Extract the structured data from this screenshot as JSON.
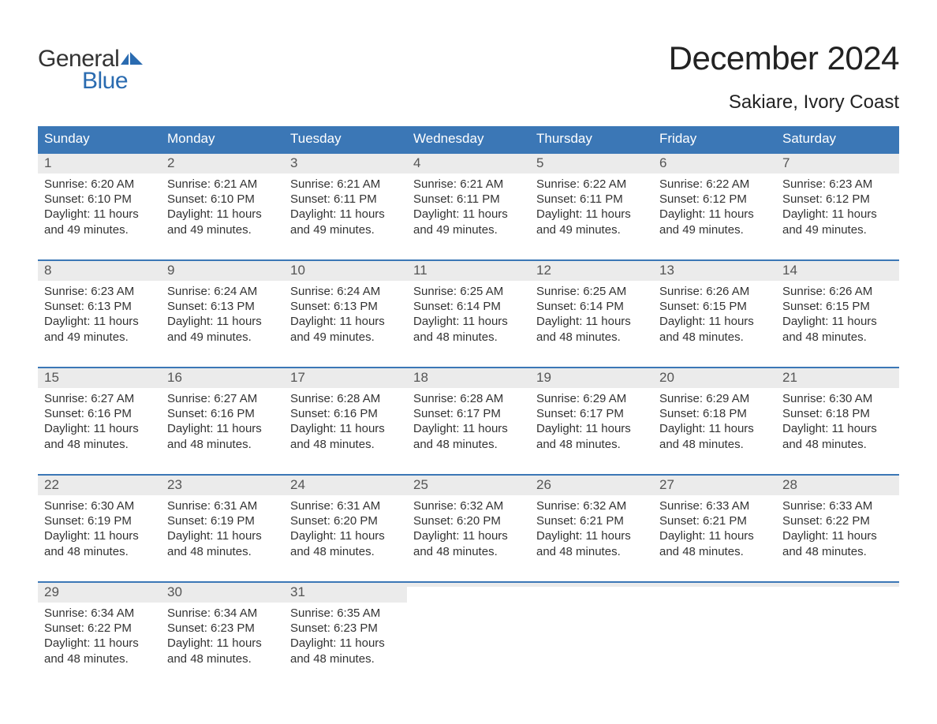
{
  "logo": {
    "word1": "General",
    "word2": "Blue",
    "flag_color": "#2a6bb0"
  },
  "title": "December 2024",
  "location": "Sakiare, Ivory Coast",
  "colors": {
    "header_bg": "#3b77b6",
    "header_text": "#ffffff",
    "row_accent": "#3b77b6",
    "daynum_bg": "#ebebeb",
    "daynum_text": "#555555",
    "body_text": "#333333",
    "page_bg": "#ffffff"
  },
  "day_names": [
    "Sunday",
    "Monday",
    "Tuesday",
    "Wednesday",
    "Thursday",
    "Friday",
    "Saturday"
  ],
  "labels": {
    "sunrise": "Sunrise:",
    "sunset": "Sunset:",
    "daylight": "Daylight:"
  },
  "weeks": [
    [
      {
        "n": "1",
        "sunrise": "6:20 AM",
        "sunset": "6:10 PM",
        "daylight": "11 hours and 49 minutes."
      },
      {
        "n": "2",
        "sunrise": "6:21 AM",
        "sunset": "6:10 PM",
        "daylight": "11 hours and 49 minutes."
      },
      {
        "n": "3",
        "sunrise": "6:21 AM",
        "sunset": "6:11 PM",
        "daylight": "11 hours and 49 minutes."
      },
      {
        "n": "4",
        "sunrise": "6:21 AM",
        "sunset": "6:11 PM",
        "daylight": "11 hours and 49 minutes."
      },
      {
        "n": "5",
        "sunrise": "6:22 AM",
        "sunset": "6:11 PM",
        "daylight": "11 hours and 49 minutes."
      },
      {
        "n": "6",
        "sunrise": "6:22 AM",
        "sunset": "6:12 PM",
        "daylight": "11 hours and 49 minutes."
      },
      {
        "n": "7",
        "sunrise": "6:23 AM",
        "sunset": "6:12 PM",
        "daylight": "11 hours and 49 minutes."
      }
    ],
    [
      {
        "n": "8",
        "sunrise": "6:23 AM",
        "sunset": "6:13 PM",
        "daylight": "11 hours and 49 minutes."
      },
      {
        "n": "9",
        "sunrise": "6:24 AM",
        "sunset": "6:13 PM",
        "daylight": "11 hours and 49 minutes."
      },
      {
        "n": "10",
        "sunrise": "6:24 AM",
        "sunset": "6:13 PM",
        "daylight": "11 hours and 49 minutes."
      },
      {
        "n": "11",
        "sunrise": "6:25 AM",
        "sunset": "6:14 PM",
        "daylight": "11 hours and 48 minutes."
      },
      {
        "n": "12",
        "sunrise": "6:25 AM",
        "sunset": "6:14 PM",
        "daylight": "11 hours and 48 minutes."
      },
      {
        "n": "13",
        "sunrise": "6:26 AM",
        "sunset": "6:15 PM",
        "daylight": "11 hours and 48 minutes."
      },
      {
        "n": "14",
        "sunrise": "6:26 AM",
        "sunset": "6:15 PM",
        "daylight": "11 hours and 48 minutes."
      }
    ],
    [
      {
        "n": "15",
        "sunrise": "6:27 AM",
        "sunset": "6:16 PM",
        "daylight": "11 hours and 48 minutes."
      },
      {
        "n": "16",
        "sunrise": "6:27 AM",
        "sunset": "6:16 PM",
        "daylight": "11 hours and 48 minutes."
      },
      {
        "n": "17",
        "sunrise": "6:28 AM",
        "sunset": "6:16 PM",
        "daylight": "11 hours and 48 minutes."
      },
      {
        "n": "18",
        "sunrise": "6:28 AM",
        "sunset": "6:17 PM",
        "daylight": "11 hours and 48 minutes."
      },
      {
        "n": "19",
        "sunrise": "6:29 AM",
        "sunset": "6:17 PM",
        "daylight": "11 hours and 48 minutes."
      },
      {
        "n": "20",
        "sunrise": "6:29 AM",
        "sunset": "6:18 PM",
        "daylight": "11 hours and 48 minutes."
      },
      {
        "n": "21",
        "sunrise": "6:30 AM",
        "sunset": "6:18 PM",
        "daylight": "11 hours and 48 minutes."
      }
    ],
    [
      {
        "n": "22",
        "sunrise": "6:30 AM",
        "sunset": "6:19 PM",
        "daylight": "11 hours and 48 minutes."
      },
      {
        "n": "23",
        "sunrise": "6:31 AM",
        "sunset": "6:19 PM",
        "daylight": "11 hours and 48 minutes."
      },
      {
        "n": "24",
        "sunrise": "6:31 AM",
        "sunset": "6:20 PM",
        "daylight": "11 hours and 48 minutes."
      },
      {
        "n": "25",
        "sunrise": "6:32 AM",
        "sunset": "6:20 PM",
        "daylight": "11 hours and 48 minutes."
      },
      {
        "n": "26",
        "sunrise": "6:32 AM",
        "sunset": "6:21 PM",
        "daylight": "11 hours and 48 minutes."
      },
      {
        "n": "27",
        "sunrise": "6:33 AM",
        "sunset": "6:21 PM",
        "daylight": "11 hours and 48 minutes."
      },
      {
        "n": "28",
        "sunrise": "6:33 AM",
        "sunset": "6:22 PM",
        "daylight": "11 hours and 48 minutes."
      }
    ],
    [
      {
        "n": "29",
        "sunrise": "6:34 AM",
        "sunset": "6:22 PM",
        "daylight": "11 hours and 48 minutes."
      },
      {
        "n": "30",
        "sunrise": "6:34 AM",
        "sunset": "6:23 PM",
        "daylight": "11 hours and 48 minutes."
      },
      {
        "n": "31",
        "sunrise": "6:35 AM",
        "sunset": "6:23 PM",
        "daylight": "11 hours and 48 minutes."
      },
      {
        "empty": true
      },
      {
        "empty": true
      },
      {
        "empty": true
      },
      {
        "empty": true
      }
    ]
  ]
}
